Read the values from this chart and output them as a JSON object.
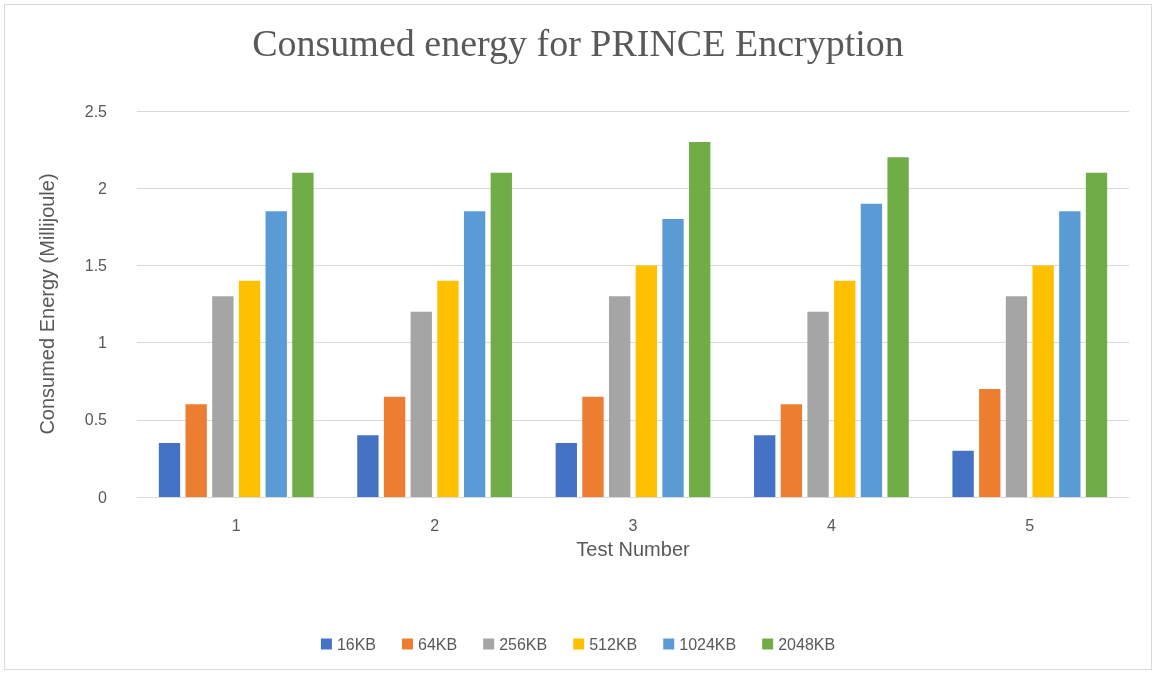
{
  "chart_data": {
    "type": "bar",
    "title": "Consumed energy for PRINCE Encryption",
    "xlabel": "Test Number",
    "ylabel": "Consumed Energy (Millijoule)",
    "categories": [
      "1",
      "2",
      "3",
      "4",
      "5"
    ],
    "series": [
      {
        "name": "16KB",
        "color": "#4472c4",
        "values": [
          0.35,
          0.4,
          0.35,
          0.4,
          0.3
        ]
      },
      {
        "name": "64KB",
        "color": "#ed7d31",
        "values": [
          0.6,
          0.65,
          0.65,
          0.6,
          0.7
        ]
      },
      {
        "name": "256KB",
        "color": "#a5a5a5",
        "values": [
          1.3,
          1.2,
          1.3,
          1.2,
          1.3
        ]
      },
      {
        "name": "512KB",
        "color": "#ffc000",
        "values": [
          1.4,
          1.4,
          1.5,
          1.4,
          1.5
        ]
      },
      {
        "name": "1024KB",
        "color": "#5b9bd5",
        "values": [
          1.85,
          1.85,
          1.8,
          1.9,
          1.85
        ]
      },
      {
        "name": "2048KB",
        "color": "#70ad47",
        "values": [
          2.1,
          2.1,
          2.3,
          2.2,
          2.1
        ]
      }
    ],
    "ylim": [
      0,
      2.5
    ],
    "yticks": [
      0,
      0.5,
      1,
      1.5,
      2,
      2.5
    ],
    "grid": "y",
    "legend": "bottom"
  }
}
